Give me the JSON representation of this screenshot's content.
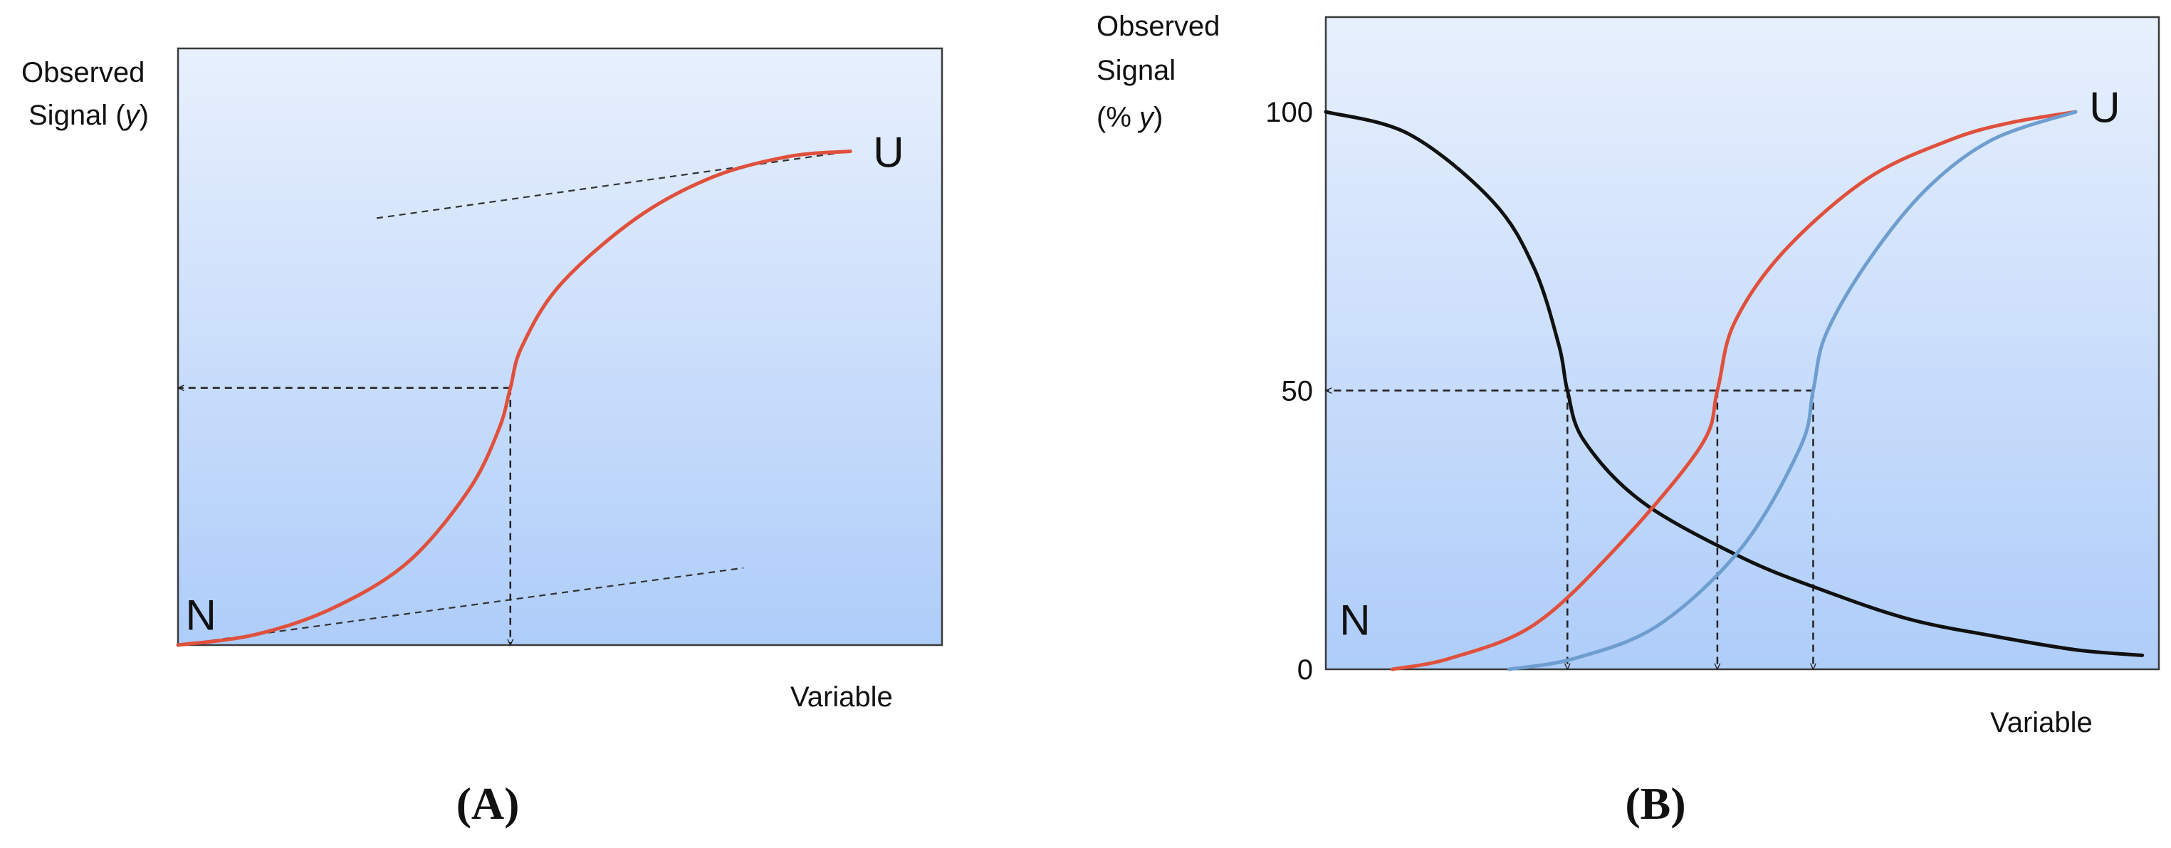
{
  "chart_data": [
    {
      "type": "line",
      "panel_label": "(A)",
      "ylabel_line1": "Observed",
      "ylabel_line2_prefix": "Signal (",
      "ylabel_line2_var": "y",
      "ylabel_line2_suffix": ")",
      "xlabel": "Variable",
      "series": [
        {
          "color": "#e0503c",
          "points": [
            [
              0,
              0
            ],
            [
              0.1,
              0.02
            ],
            [
              0.2,
              0.07
            ],
            [
              0.3,
              0.16
            ],
            [
              0.38,
              0.3
            ],
            [
              0.42,
              0.42
            ],
            [
              0.435,
              0.5
            ],
            [
              0.45,
              0.58
            ],
            [
              0.5,
              0.7
            ],
            [
              0.6,
              0.83
            ],
            [
              0.7,
              0.91
            ],
            [
              0.8,
              0.95
            ],
            [
              0.88,
              0.96
            ]
          ]
        }
      ],
      "baselines": [
        {
          "style": "dashed",
          "color": "#333333",
          "points": [
            [
              0,
              0
            ],
            [
              0.74,
              0.15
            ]
          ]
        },
        {
          "style": "dashed",
          "color": "#333333",
          "points": [
            [
              0.26,
              0.83
            ],
            [
              0.88,
              0.96
            ]
          ]
        }
      ],
      "guides": [
        {
          "style": "dashed-arrow",
          "points": [
            [
              0.435,
              0.5
            ],
            [
              0,
              0.5
            ]
          ]
        },
        {
          "style": "dashed-arrow",
          "points": [
            [
              0.435,
              0.5
            ],
            [
              0.435,
              0
            ]
          ]
        }
      ],
      "annotations": [
        {
          "text": "N",
          "x": 0.03,
          "y": 0.06
        },
        {
          "text": "U",
          "x": 0.93,
          "y": 0.96
        }
      ],
      "xlim": [
        0,
        1
      ],
      "ylim": [
        0,
        1.16
      ],
      "grid": false
    },
    {
      "type": "line",
      "panel_label": "(B)",
      "ylabel_line1": "Observed",
      "ylabel_line2": "Signal",
      "ylabel_line3_prefix": "(% ",
      "ylabel_line3_var": "y",
      "ylabel_line3_suffix": ")",
      "xlabel": "Variable",
      "yticks": [
        {
          "value": 0,
          "label": "0"
        },
        {
          "value": 50,
          "label": "50"
        },
        {
          "value": 100,
          "label": "100"
        }
      ],
      "series": [
        {
          "color": "#111111",
          "points": [
            [
              0,
              100
            ],
            [
              0.1,
              96
            ],
            [
              0.2,
              84
            ],
            [
              0.25,
              72
            ],
            [
              0.28,
              58
            ],
            [
              0.29,
              50
            ],
            [
              0.31,
              41
            ],
            [
              0.38,
              30
            ],
            [
              0.5,
              20
            ],
            [
              0.6,
              14
            ],
            [
              0.7,
              9
            ],
            [
              0.8,
              6
            ],
            [
              0.9,
              3.5
            ],
            [
              0.98,
              2.5
            ]
          ]
        },
        {
          "color": "#e0503c",
          "points": [
            [
              0.08,
              0
            ],
            [
              0.15,
              2
            ],
            [
              0.25,
              8
            ],
            [
              0.35,
              22
            ],
            [
              0.45,
              40
            ],
            [
              0.47,
              50
            ],
            [
              0.49,
              62
            ],
            [
              0.55,
              75
            ],
            [
              0.65,
              88
            ],
            [
              0.75,
              95
            ],
            [
              0.82,
              98
            ],
            [
              0.9,
              100
            ]
          ]
        },
        {
          "color": "#6e9ed0",
          "points": [
            [
              0.22,
              0
            ],
            [
              0.3,
              2
            ],
            [
              0.4,
              8
            ],
            [
              0.5,
              22
            ],
            [
              0.57,
              40
            ],
            [
              0.585,
              50
            ],
            [
              0.6,
              60
            ],
            [
              0.65,
              73
            ],
            [
              0.72,
              86
            ],
            [
              0.8,
              95
            ],
            [
              0.9,
              100
            ]
          ]
        }
      ],
      "guides": [
        {
          "style": "dashed-arrow",
          "points": [
            [
              0.585,
              50
            ],
            [
              0,
              50
            ]
          ]
        },
        {
          "style": "dashed-arrow",
          "points": [
            [
              0.29,
              50
            ],
            [
              0.29,
              0
            ]
          ]
        },
        {
          "style": "dashed-arrow",
          "points": [
            [
              0.47,
              50
            ],
            [
              0.47,
              0
            ]
          ]
        },
        {
          "style": "dashed-arrow",
          "points": [
            [
              0.585,
              50
            ],
            [
              0.585,
              0
            ]
          ]
        }
      ],
      "annotations": [
        {
          "text": "N",
          "x": 0.035,
          "y": 9
        },
        {
          "text": "U",
          "x": 0.935,
          "y": 101
        }
      ],
      "xlim": [
        0,
        1
      ],
      "ylim": [
        0,
        117
      ],
      "grid": false
    }
  ]
}
